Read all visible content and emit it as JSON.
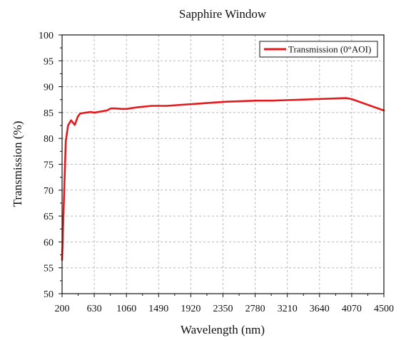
{
  "chart_data": {
    "type": "line",
    "title": "Sapphire Window",
    "xlabel": "Wavelength (nm)",
    "ylabel": "Transmission (%)",
    "xlim": [
      200,
      4500
    ],
    "ylim": [
      50,
      100
    ],
    "xticks": [
      200,
      630,
      1060,
      1490,
      1920,
      2350,
      2780,
      3210,
      3640,
      4070,
      4500
    ],
    "yticks": [
      50,
      55,
      60,
      65,
      70,
      75,
      80,
      85,
      90,
      95,
      100
    ],
    "grid": true,
    "legend_position": "top-right",
    "series": [
      {
        "name": "Transmission (0°AOI)",
        "color": "#e31a1c",
        "x": [
          200,
          220,
          250,
          280,
          320,
          370,
          410,
          440,
          480,
          520,
          580,
          630,
          680,
          720,
          760,
          800,
          850,
          900,
          1000,
          1060,
          1200,
          1400,
          1600,
          1800,
          2000,
          2200,
          2400,
          2600,
          2800,
          3000,
          3200,
          3400,
          3600,
          3800,
          4000,
          4070,
          4500
        ],
        "y": [
          56.5,
          66,
          79.5,
          82.5,
          83.5,
          82.6,
          84.2,
          84.8,
          84.9,
          85.0,
          85.1,
          85.0,
          85.1,
          85.2,
          85.3,
          85.4,
          85.8,
          85.8,
          85.7,
          85.7,
          86.0,
          86.3,
          86.3,
          86.5,
          86.7,
          86.9,
          87.1,
          87.2,
          87.3,
          87.3,
          87.4,
          87.5,
          87.6,
          87.7,
          87.8,
          87.6,
          85.4
        ]
      }
    ]
  }
}
